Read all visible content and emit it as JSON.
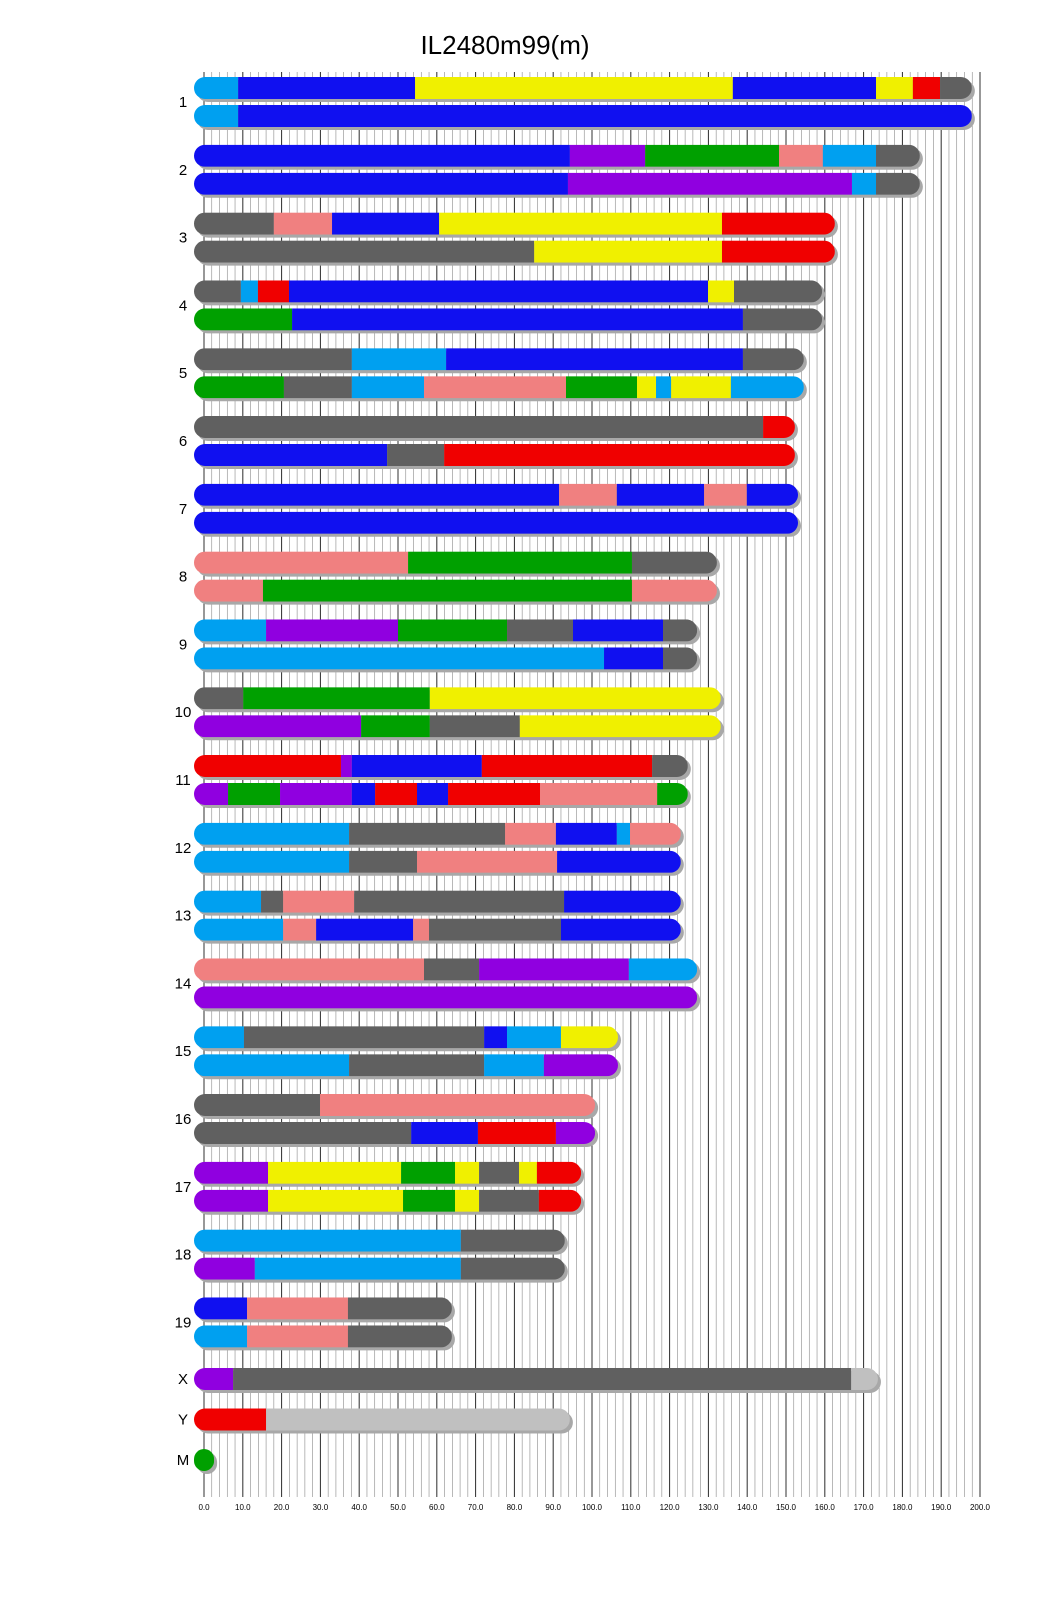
{
  "chart_data": {
    "type": "chromosome-painting",
    "title": "IL2480m99(m)",
    "xlim": [
      0,
      200
    ],
    "xticks": [
      {
        "value": 0,
        "label": "0.0"
      },
      {
        "value": 10,
        "label": "10.0"
      },
      {
        "value": 20,
        "label": "20.0"
      },
      {
        "value": 30,
        "label": "30.0"
      },
      {
        "value": 40,
        "label": "40.0"
      },
      {
        "value": 50,
        "label": "50.0"
      },
      {
        "value": 60,
        "label": "60.0"
      },
      {
        "value": 70,
        "label": "70.0"
      },
      {
        "value": 80,
        "label": "80.0"
      },
      {
        "value": 90,
        "label": "90.0"
      },
      {
        "value": 100,
        "label": "100.0"
      },
      {
        "value": 110,
        "label": "110.0"
      },
      {
        "value": 120,
        "label": "120.0"
      },
      {
        "value": 130,
        "label": "130.0"
      },
      {
        "value": 140,
        "label": "140.0"
      },
      {
        "value": 150,
        "label": "150.0"
      },
      {
        "value": 160,
        "label": "160.0"
      },
      {
        "value": 170,
        "label": "170.0"
      },
      {
        "value": 180,
        "label": "180.0"
      },
      {
        "value": 190,
        "label": "190.0"
      },
      {
        "value": 200,
        "label": "200.0"
      }
    ],
    "minor_grid_step": 2,
    "grid": true,
    "chromosomes": [
      {
        "name": "1",
        "haplotypes": [
          [
            {
              "end": 8.8,
              "color": "#00a0f0"
            },
            {
              "end": 54.4,
              "color": "#1010f0"
            },
            {
              "end": 136.3,
              "color": "#f0f000"
            },
            {
              "end": 173.2,
              "color": "#1010f0"
            },
            {
              "end": 182.7,
              "color": "#f0f000"
            },
            {
              "end": 189.7,
              "color": "#f00000"
            },
            {
              "end": 197.9,
              "color": "#606060"
            }
          ],
          [
            {
              "end": 8.8,
              "color": "#00a0f0"
            },
            {
              "end": 197.9,
              "color": "#1010f0"
            }
          ]
        ]
      },
      {
        "name": "2",
        "haplotypes": [
          [
            {
              "end": 94.3,
              "color": "#1010f0"
            },
            {
              "end": 113.7,
              "color": "#9000e0"
            },
            {
              "end": 148.2,
              "color": "#00a000"
            },
            {
              "end": 159.5,
              "color": "#f08080"
            },
            {
              "end": 173.2,
              "color": "#00a0f0"
            },
            {
              "end": 184.5,
              "color": "#606060"
            }
          ],
          [
            {
              "end": 93.8,
              "color": "#1010f0"
            },
            {
              "end": 167.0,
              "color": "#9000e0"
            },
            {
              "end": 173.2,
              "color": "#00a0f0"
            },
            {
              "end": 184.5,
              "color": "#606060"
            }
          ]
        ]
      },
      {
        "name": "3",
        "haplotypes": [
          [
            {
              "end": 18.0,
              "color": "#606060"
            },
            {
              "end": 33.0,
              "color": "#f08080"
            },
            {
              "end": 60.6,
              "color": "#1010f0"
            },
            {
              "end": 133.5,
              "color": "#f0f000"
            },
            {
              "end": 162.6,
              "color": "#f00000"
            }
          ],
          [
            {
              "end": 85.1,
              "color": "#606060"
            },
            {
              "end": 133.5,
              "color": "#f0f000"
            },
            {
              "end": 162.6,
              "color": "#f00000"
            }
          ]
        ]
      },
      {
        "name": "4",
        "haplotypes": [
          [
            {
              "end": 9.5,
              "color": "#606060"
            },
            {
              "end": 13.9,
              "color": "#00a0f0"
            },
            {
              "end": 21.9,
              "color": "#f00000"
            },
            {
              "end": 129.9,
              "color": "#1010f0"
            },
            {
              "end": 136.6,
              "color": "#f0f000"
            },
            {
              "end": 159.3,
              "color": "#606060"
            }
          ],
          [
            {
              "end": 22.7,
              "color": "#00a000"
            },
            {
              "end": 138.9,
              "color": "#1010f0"
            },
            {
              "end": 159.3,
              "color": "#606060"
            }
          ]
        ]
      },
      {
        "name": "5",
        "haplotypes": [
          [
            {
              "end": 38.1,
              "color": "#606060"
            },
            {
              "end": 62.4,
              "color": "#00a0f0"
            },
            {
              "end": 138.9,
              "color": "#1010f0"
            },
            {
              "end": 154.6,
              "color": "#606060"
            }
          ],
          [
            {
              "end": 20.6,
              "color": "#00a000"
            },
            {
              "end": 38.1,
              "color": "#606060"
            },
            {
              "end": 56.7,
              "color": "#00a0f0"
            },
            {
              "end": 93.3,
              "color": "#f08080"
            },
            {
              "end": 111.6,
              "color": "#00a000"
            },
            {
              "end": 116.5,
              "color": "#f0f000"
            },
            {
              "end": 120.4,
              "color": "#00a0f0"
            },
            {
              "end": 135.8,
              "color": "#f0f000"
            },
            {
              "end": 154.6,
              "color": "#00a0f0"
            }
          ]
        ]
      },
      {
        "name": "6",
        "haplotypes": [
          [
            {
              "end": 144.1,
              "color": "#606060"
            },
            {
              "end": 152.3,
              "color": "#f00000"
            }
          ],
          [
            {
              "end": 47.2,
              "color": "#1010f0"
            },
            {
              "end": 61.9,
              "color": "#606060"
            },
            {
              "end": 152.3,
              "color": "#f00000"
            }
          ]
        ]
      },
      {
        "name": "7",
        "haplotypes": [
          [
            {
              "end": 91.5,
              "color": "#1010f0"
            },
            {
              "end": 106.4,
              "color": "#f08080"
            },
            {
              "end": 128.9,
              "color": "#1010f0"
            },
            {
              "end": 139.9,
              "color": "#f08080"
            },
            {
              "end": 153.1,
              "color": "#1010f0"
            }
          ],
          [
            {
              "end": 153.1,
              "color": "#1010f0"
            }
          ]
        ]
      },
      {
        "name": "8",
        "haplotypes": [
          [
            {
              "end": 52.6,
              "color": "#f08080"
            },
            {
              "end": 110.3,
              "color": "#00a000"
            },
            {
              "end": 132.2,
              "color": "#606060"
            }
          ],
          [
            {
              "end": 15.2,
              "color": "#f08080"
            },
            {
              "end": 110.3,
              "color": "#00a000"
            },
            {
              "end": 132.2,
              "color": "#f08080"
            }
          ]
        ]
      },
      {
        "name": "9",
        "haplotypes": [
          [
            {
              "end": 16.0,
              "color": "#00a0f0"
            },
            {
              "end": 50.0,
              "color": "#9000e0"
            },
            {
              "end": 78.1,
              "color": "#00a000"
            },
            {
              "end": 95.1,
              "color": "#606060"
            },
            {
              "end": 118.3,
              "color": "#1010f0"
            },
            {
              "end": 127.1,
              "color": "#606060"
            }
          ],
          [
            {
              "end": 103.1,
              "color": "#00a0f0"
            },
            {
              "end": 118.3,
              "color": "#1010f0"
            },
            {
              "end": 127.1,
              "color": "#606060"
            }
          ]
        ]
      },
      {
        "name": "10",
        "haplotypes": [
          [
            {
              "end": 10.1,
              "color": "#606060"
            },
            {
              "end": 58.2,
              "color": "#00a000"
            },
            {
              "end": 133.2,
              "color": "#f0f000"
            }
          ],
          [
            {
              "end": 40.5,
              "color": "#9000e0"
            },
            {
              "end": 58.2,
              "color": "#00a000"
            },
            {
              "end": 81.4,
              "color": "#606060"
            },
            {
              "end": 133.2,
              "color": "#f0f000"
            }
          ]
        ]
      },
      {
        "name": "11",
        "haplotypes": [
          [
            {
              "end": 35.3,
              "color": "#f00000"
            },
            {
              "end": 38.1,
              "color": "#9000e0"
            },
            {
              "end": 71.6,
              "color": "#1010f0"
            },
            {
              "end": 115.5,
              "color": "#f00000"
            },
            {
              "end": 124.7,
              "color": "#606060"
            }
          ],
          [
            {
              "end": 6.2,
              "color": "#9000e0"
            },
            {
              "end": 19.6,
              "color": "#00a000"
            },
            {
              "end": 38.1,
              "color": "#9000e0"
            },
            {
              "end": 44.1,
              "color": "#1010f0"
            },
            {
              "end": 54.9,
              "color": "#f00000"
            },
            {
              "end": 62.9,
              "color": "#1010f0"
            },
            {
              "end": 86.6,
              "color": "#f00000"
            },
            {
              "end": 116.8,
              "color": "#f08080"
            },
            {
              "end": 124.7,
              "color": "#00a000"
            }
          ]
        ]
      },
      {
        "name": "12",
        "haplotypes": [
          [
            {
              "end": 37.4,
              "color": "#00a0f0"
            },
            {
              "end": 77.6,
              "color": "#606060"
            },
            {
              "end": 90.7,
              "color": "#f08080"
            },
            {
              "end": 106.4,
              "color": "#1010f0"
            },
            {
              "end": 109.8,
              "color": "#00a0f0"
            },
            {
              "end": 122.9,
              "color": "#f08080"
            }
          ],
          [
            {
              "end": 37.4,
              "color": "#00a0f0"
            },
            {
              "end": 54.9,
              "color": "#606060"
            },
            {
              "end": 91.0,
              "color": "#f08080"
            },
            {
              "end": 122.9,
              "color": "#1010f0"
            }
          ]
        ]
      },
      {
        "name": "13",
        "haplotypes": [
          [
            {
              "end": 14.7,
              "color": "#00a0f0"
            },
            {
              "end": 20.4,
              "color": "#606060"
            },
            {
              "end": 38.7,
              "color": "#f08080"
            },
            {
              "end": 92.8,
              "color": "#606060"
            },
            {
              "end": 122.9,
              "color": "#1010f0"
            }
          ],
          [
            {
              "end": 20.4,
              "color": "#00a0f0"
            },
            {
              "end": 28.9,
              "color": "#f08080"
            },
            {
              "end": 53.9,
              "color": "#1010f0"
            },
            {
              "end": 58.0,
              "color": "#f08080"
            },
            {
              "end": 92.0,
              "color": "#606060"
            },
            {
              "end": 122.9,
              "color": "#1010f0"
            }
          ]
        ]
      },
      {
        "name": "14",
        "haplotypes": [
          [
            {
              "end": 56.7,
              "color": "#f08080"
            },
            {
              "end": 70.9,
              "color": "#606060"
            },
            {
              "end": 109.5,
              "color": "#9000e0"
            },
            {
              "end": 127.1,
              "color": "#00a0f0"
            }
          ],
          [
            {
              "end": 127.1,
              "color": "#9000e0"
            }
          ]
        ]
      },
      {
        "name": "15",
        "haplotypes": [
          [
            {
              "end": 10.3,
              "color": "#00a0f0"
            },
            {
              "end": 72.2,
              "color": "#606060"
            },
            {
              "end": 78.1,
              "color": "#1010f0"
            },
            {
              "end": 92.0,
              "color": "#00a0f0"
            },
            {
              "end": 106.7,
              "color": "#f0f000"
            }
          ],
          [
            {
              "end": 37.4,
              "color": "#00a0f0"
            },
            {
              "end": 72.2,
              "color": "#606060"
            },
            {
              "end": 87.6,
              "color": "#00a0f0"
            },
            {
              "end": 106.7,
              "color": "#9000e0"
            }
          ]
        ]
      },
      {
        "name": "16",
        "haplotypes": [
          [
            {
              "end": 29.9,
              "color": "#606060"
            },
            {
              "end": 100.8,
              "color": "#f08080"
            }
          ],
          [
            {
              "end": 53.4,
              "color": "#606060"
            },
            {
              "end": 70.6,
              "color": "#1010f0"
            },
            {
              "end": 90.7,
              "color": "#f00000"
            },
            {
              "end": 100.8,
              "color": "#9000e0"
            }
          ]
        ]
      },
      {
        "name": "17",
        "haplotypes": [
          [
            {
              "end": 16.5,
              "color": "#9000e0"
            },
            {
              "end": 50.8,
              "color": "#f0f000"
            },
            {
              "end": 64.7,
              "color": "#00a000"
            },
            {
              "end": 70.9,
              "color": "#f0f000"
            },
            {
              "end": 81.2,
              "color": "#606060"
            },
            {
              "end": 85.8,
              "color": "#f0f000"
            },
            {
              "end": 97.2,
              "color": "#f00000"
            }
          ],
          [
            {
              "end": 16.5,
              "color": "#9000e0"
            },
            {
              "end": 51.3,
              "color": "#f0f000"
            },
            {
              "end": 64.7,
              "color": "#00a000"
            },
            {
              "end": 70.9,
              "color": "#f0f000"
            },
            {
              "end": 86.3,
              "color": "#606060"
            },
            {
              "end": 97.2,
              "color": "#f00000"
            }
          ]
        ]
      },
      {
        "name": "18",
        "haplotypes": [
          [
            {
              "end": 66.2,
              "color": "#00a0f0"
            },
            {
              "end": 93.0,
              "color": "#606060"
            }
          ],
          [
            {
              "end": 13.1,
              "color": "#9000e0"
            },
            {
              "end": 66.2,
              "color": "#00a0f0"
            },
            {
              "end": 93.0,
              "color": "#606060"
            }
          ]
        ]
      },
      {
        "name": "19",
        "haplotypes": [
          [
            {
              "end": 11.1,
              "color": "#1010f0"
            },
            {
              "end": 37.1,
              "color": "#f08080"
            },
            {
              "end": 63.9,
              "color": "#606060"
            }
          ],
          [
            {
              "end": 11.1,
              "color": "#00a0f0"
            },
            {
              "end": 37.1,
              "color": "#f08080"
            },
            {
              "end": 63.9,
              "color": "#606060"
            }
          ]
        ]
      },
      {
        "name": "X",
        "haplotypes": [
          [
            {
              "end": 7.5,
              "color": "#9000e0"
            },
            {
              "end": 166.8,
              "color": "#606060"
            },
            {
              "end": 173.7,
              "color": "#c0c0c0"
            }
          ]
        ]
      },
      {
        "name": "Y",
        "haplotypes": [
          [
            {
              "end": 16.0,
              "color": "#f00000"
            },
            {
              "end": 94.3,
              "color": "#c0c0c0"
            }
          ]
        ]
      },
      {
        "name": "M",
        "haplotypes": [
          [
            {
              "end": 2.6,
              "color": "#00a000"
            }
          ]
        ]
      }
    ]
  }
}
